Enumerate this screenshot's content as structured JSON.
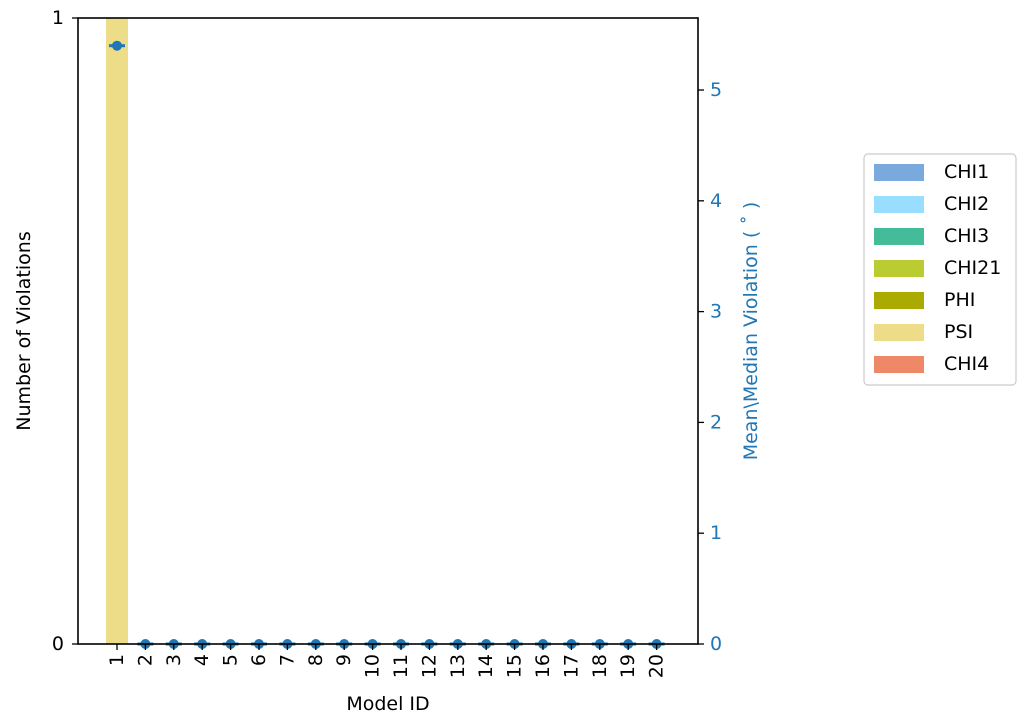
{
  "chart_data": {
    "type": "bar",
    "categories": [
      "1",
      "2",
      "3",
      "4",
      "5",
      "6",
      "7",
      "8",
      "9",
      "10",
      "11",
      "12",
      "13",
      "14",
      "15",
      "16",
      "17",
      "18",
      "19",
      "20"
    ],
    "xlabel": "Model ID",
    "ylabel_left": "Number of Violations",
    "ylabel_right": "Mean\\Median Violation ( ˚ )",
    "ylim_left": [
      0,
      1
    ],
    "yticks_left": [
      "0",
      "1"
    ],
    "ylim_right": [
      0,
      5.65
    ],
    "yticks_right": [
      "0",
      "1",
      "2",
      "3",
      "4",
      "5"
    ],
    "series": [
      {
        "name": "CHI1",
        "color": "#7aaadd",
        "values": [
          0,
          0,
          0,
          0,
          0,
          0,
          0,
          0,
          0,
          0,
          0,
          0,
          0,
          0,
          0,
          0,
          0,
          0,
          0,
          0
        ]
      },
      {
        "name": "CHI2",
        "color": "#99ddff",
        "values": [
          0,
          0,
          0,
          0,
          0,
          0,
          0,
          0,
          0,
          0,
          0,
          0,
          0,
          0,
          0,
          0,
          0,
          0,
          0,
          0
        ]
      },
      {
        "name": "CHI3",
        "color": "#44bb99",
        "values": [
          0,
          0,
          0,
          0,
          0,
          0,
          0,
          0,
          0,
          0,
          0,
          0,
          0,
          0,
          0,
          0,
          0,
          0,
          0,
          0
        ]
      },
      {
        "name": "CHI21",
        "color": "#bbcc33",
        "values": [
          0,
          0,
          0,
          0,
          0,
          0,
          0,
          0,
          0,
          0,
          0,
          0,
          0,
          0,
          0,
          0,
          0,
          0,
          0,
          0
        ]
      },
      {
        "name": "PHI",
        "color": "#aaaa00",
        "values": [
          0,
          0,
          0,
          0,
          0,
          0,
          0,
          0,
          0,
          0,
          0,
          0,
          0,
          0,
          0,
          0,
          0,
          0,
          0,
          0
        ]
      },
      {
        "name": "PSI",
        "color": "#eedd88",
        "values": [
          1,
          0,
          0,
          0,
          0,
          0,
          0,
          0,
          0,
          0,
          0,
          0,
          0,
          0,
          0,
          0,
          0,
          0,
          0,
          0
        ]
      },
      {
        "name": "CHI4",
        "color": "#ee8866",
        "values": [
          0,
          0,
          0,
          0,
          0,
          0,
          0,
          0,
          0,
          0,
          0,
          0,
          0,
          0,
          0,
          0,
          0,
          0,
          0,
          0
        ]
      }
    ],
    "mean_violation": {
      "color": "#1f77b4",
      "values": [
        5.4,
        0,
        0,
        0,
        0,
        0,
        0,
        0,
        0,
        0,
        0,
        0,
        0,
        0,
        0,
        0,
        0,
        0,
        0,
        0
      ]
    },
    "legend_position": "right",
    "grid": false
  }
}
